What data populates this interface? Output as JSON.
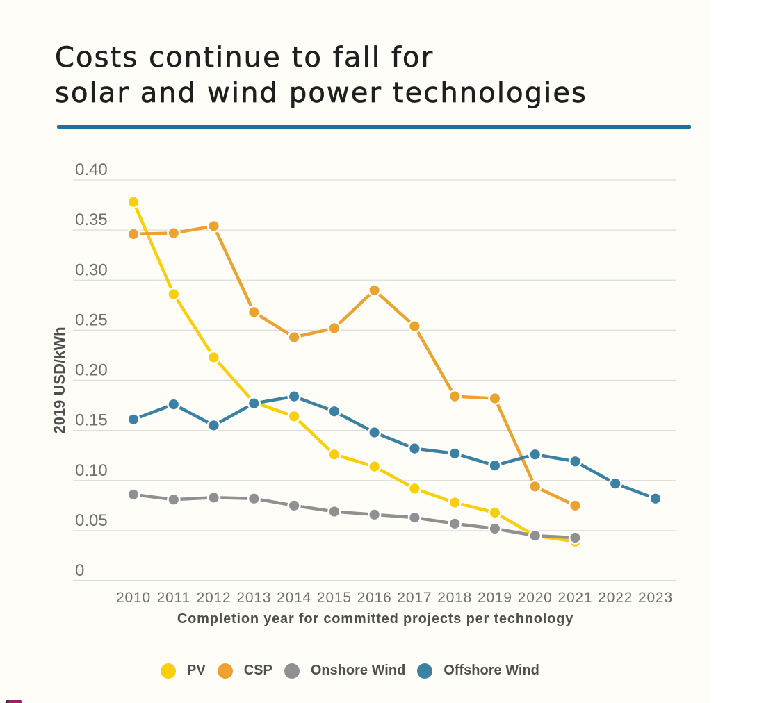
{
  "title": {
    "line1": "Costs continue to fall for",
    "line2": "solar and wind power technologies"
  },
  "accent_rule_color": "#1C70A0",
  "chart_data": {
    "type": "line",
    "title": "Costs continue to fall for solar and wind power technologies",
    "xlabel": "Completion year for committed projects per technology",
    "ylabel": "2019 USD/kWh",
    "categories": [
      2010,
      2011,
      2012,
      2013,
      2014,
      2015,
      2016,
      2017,
      2018,
      2019,
      2020,
      2021,
      2022,
      2023
    ],
    "series": [
      {
        "name": "PV",
        "color": "#F9CE0D",
        "values": [
          0.378,
          0.286,
          0.223,
          0.178,
          0.164,
          0.126,
          0.114,
          0.092,
          0.078,
          0.068,
          0.045,
          0.039,
          null,
          null
        ]
      },
      {
        "name": "CSP",
        "color": "#EBA231",
        "values": [
          0.346,
          0.347,
          0.354,
          0.268,
          0.243,
          0.252,
          0.29,
          0.254,
          0.184,
          0.182,
          0.094,
          0.075,
          null,
          null
        ]
      },
      {
        "name": "Onshore Wind",
        "color": "#909090",
        "values": [
          0.086,
          0.081,
          0.083,
          0.082,
          0.075,
          0.069,
          0.066,
          0.063,
          0.057,
          0.052,
          0.045,
          0.043,
          null,
          null
        ]
      },
      {
        "name": "Offshore Wind",
        "color": "#3A81A4",
        "values": [
          0.161,
          0.176,
          0.155,
          0.177,
          0.184,
          0.169,
          0.148,
          0.132,
          0.127,
          0.115,
          0.126,
          0.119,
          0.097,
          0.082
        ]
      }
    ],
    "ylim": [
      0,
      0.4
    ],
    "y_tick_values": [
      0.4,
      0.35,
      0.3,
      0.25,
      0.2,
      0.15,
      0.1,
      0.05,
      0
    ],
    "y_tick_labels": [
      "0.40",
      "0.35",
      "0.30",
      "0.25",
      "0.20",
      "0.15",
      "0.10",
      "0.05",
      "0"
    ],
    "grid": true,
    "legend_position": "bottom",
    "gridline_color": "#DCDCDC",
    "baseline_color": "#C9C9C9",
    "tick_label_color": "#6F6F6F"
  },
  "logo": {
    "main_color": "#9E2167",
    "shadow_color": "#3E3050"
  }
}
